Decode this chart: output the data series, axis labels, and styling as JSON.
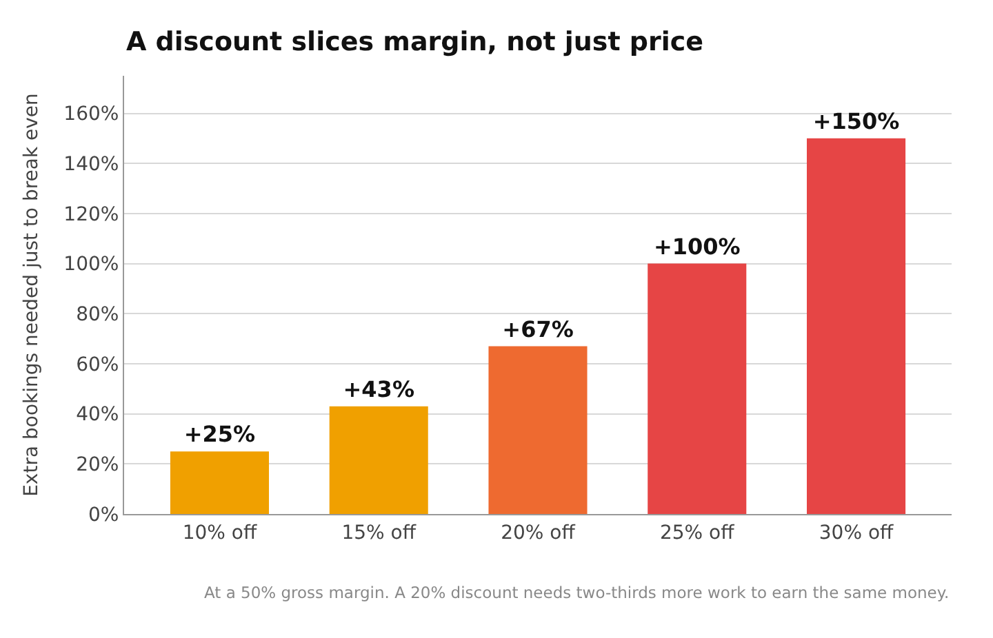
{
  "chart_data": {
    "type": "bar",
    "title": "A discount slices margin, not just price",
    "ylabel": "Extra bookings needed just to break even",
    "categories": [
      "10% off",
      "15% off",
      "20% off",
      "25% off",
      "30% off"
    ],
    "values": [
      25,
      43,
      67,
      100,
      150
    ],
    "colors": [
      "#f0a000",
      "#f0a000",
      "#ee6a30",
      "#e64545",
      "#e64545"
    ],
    "value_labels": [
      "+25%",
      "+43%",
      "+67%",
      "+100%",
      "+150%"
    ],
    "ylim": [
      0,
      175
    ],
    "yticks": [
      {
        "value": 0,
        "label": "0%"
      },
      {
        "value": 20,
        "label": "20%"
      },
      {
        "value": 40,
        "label": "40%"
      },
      {
        "value": 60,
        "label": "60%"
      },
      {
        "value": 80,
        "label": "80%"
      },
      {
        "value": 100,
        "label": "100%"
      },
      {
        "value": 120,
        "label": "120%"
      },
      {
        "value": 140,
        "label": "140%"
      },
      {
        "value": 160,
        "label": "160%"
      }
    ],
    "grid": "y",
    "annotations": [
      "At a 50% gross margin. A 20% discount needs two-thirds more work to earn the same money."
    ]
  }
}
